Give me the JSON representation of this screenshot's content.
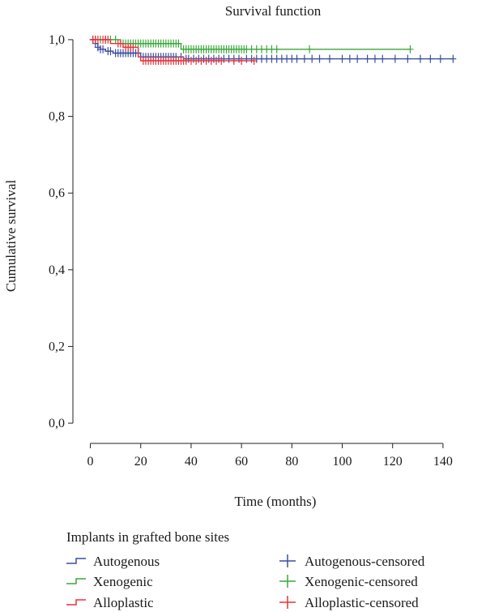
{
  "chart_data": {
    "type": "line",
    "title": "Survival function",
    "xlabel": "Time (months)",
    "ylabel": "Cumulative survival",
    "xlim": [
      -5,
      150
    ],
    "ylim": [
      -0.04,
      1.04
    ],
    "xticks": [
      0,
      20,
      40,
      60,
      80,
      100,
      120,
      140
    ],
    "xtick_labels": [
      "0",
      "20",
      "40",
      "60",
      "80",
      "100",
      "120",
      "140"
    ],
    "yticks": [
      0.0,
      0.2,
      0.4,
      0.6,
      0.8,
      1.0
    ],
    "ytick_labels": [
      "0,0",
      "0,2",
      "0,4",
      "0,6",
      "0,8",
      "1,0"
    ],
    "grid": false,
    "legend": {
      "title": "Implants in grafted bone sites",
      "placement": "bottom",
      "items": [
        {
          "label": "Autogenous",
          "kind": "line",
          "series": 0
        },
        {
          "label": "Autogenous-censored",
          "kind": "censor",
          "series": 0
        },
        {
          "label": "Xenogenic",
          "kind": "line",
          "series": 1
        },
        {
          "label": "Xenogenic-censored",
          "kind": "censor",
          "series": 1
        },
        {
          "label": "Alloplastic",
          "kind": "line",
          "series": 2
        },
        {
          "label": "Alloplastic-censored",
          "kind": "censor",
          "series": 2
        }
      ]
    },
    "series": [
      {
        "name": "Autogenous",
        "color": "#3a4fa0",
        "steps": [
          [
            0,
            1.0
          ],
          [
            2,
            0.99
          ],
          [
            3,
            0.98
          ],
          [
            4,
            0.975
          ],
          [
            6,
            0.97
          ],
          [
            9,
            0.965
          ],
          [
            20,
            0.955
          ],
          [
            37,
            0.95
          ],
          [
            144,
            0.95
          ]
        ],
        "censored": [
          1,
          2,
          3,
          4,
          5,
          7,
          8,
          10,
          11,
          12,
          13,
          14,
          15,
          16,
          17,
          18,
          19,
          21,
          22,
          23,
          24,
          25,
          26,
          27,
          28,
          29,
          30,
          31,
          32,
          33,
          34,
          36,
          38,
          39,
          41,
          43,
          45,
          47,
          49,
          51,
          53,
          55,
          57,
          59,
          62,
          64,
          66,
          68,
          70,
          72,
          74,
          76,
          78,
          80,
          82,
          85,
          88,
          91,
          95,
          100,
          103,
          106,
          110,
          113,
          116,
          121,
          126,
          131,
          135,
          139,
          144
        ]
      },
      {
        "name": "Xenogenic",
        "color": "#3aa83a",
        "steps": [
          [
            0,
            1.0
          ],
          [
            12,
            0.99
          ],
          [
            36,
            0.975
          ],
          [
            127,
            0.975
          ]
        ],
        "censored": [
          2,
          4,
          6,
          8,
          10,
          13,
          14,
          15,
          16,
          17,
          18,
          19,
          20,
          21,
          22,
          23,
          24,
          25,
          26,
          27,
          28,
          29,
          30,
          31,
          32,
          33,
          34,
          35,
          37,
          38,
          39,
          40,
          41,
          42,
          43,
          44,
          45,
          46,
          47,
          48,
          49,
          50,
          51,
          52,
          53,
          54,
          55,
          56,
          57,
          58,
          59,
          60,
          61,
          62,
          64,
          66,
          68,
          70,
          72,
          74,
          87,
          127
        ]
      },
      {
        "name": "Alloplastic",
        "color": "#e8323a",
        "steps": [
          [
            0,
            1.0
          ],
          [
            8,
            0.99
          ],
          [
            13,
            0.98
          ],
          [
            19,
            0.955
          ],
          [
            20,
            0.945
          ],
          [
            65,
            0.945
          ]
        ],
        "censored": [
          1,
          2,
          3,
          5,
          6,
          7,
          11,
          12,
          14,
          15,
          16,
          17,
          21,
          22,
          23,
          24,
          25,
          26,
          27,
          28,
          29,
          30,
          31,
          32,
          33,
          34,
          35,
          36,
          37,
          38,
          40,
          42,
          44,
          46,
          48,
          50,
          52,
          57,
          60,
          65
        ]
      }
    ]
  }
}
